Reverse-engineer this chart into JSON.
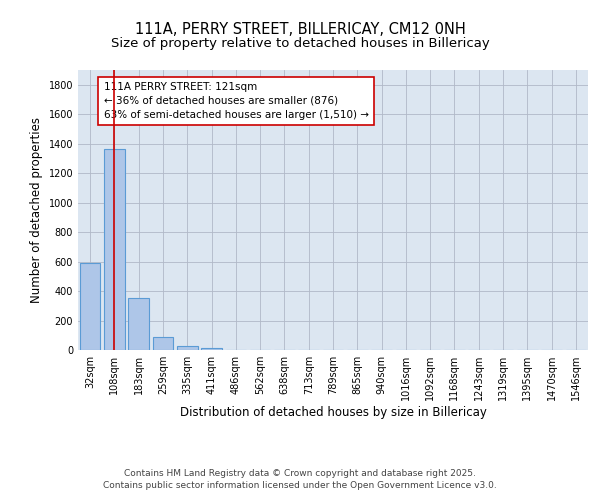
{
  "title1": "111A, PERRY STREET, BILLERICAY, CM12 0NH",
  "title2": "Size of property relative to detached houses in Billericay",
  "xlabel": "Distribution of detached houses by size in Billericay",
  "ylabel": "Number of detached properties",
  "bar_labels": [
    "32sqm",
    "108sqm",
    "183sqm",
    "259sqm",
    "335sqm",
    "411sqm",
    "486sqm",
    "562sqm",
    "638sqm",
    "713sqm",
    "789sqm",
    "865sqm",
    "940sqm",
    "1016sqm",
    "1092sqm",
    "1168sqm",
    "1243sqm",
    "1319sqm",
    "1395sqm",
    "1470sqm",
    "1546sqm"
  ],
  "bar_values": [
    590,
    1365,
    350,
    90,
    28,
    15,
    0,
    0,
    0,
    0,
    0,
    0,
    0,
    0,
    0,
    0,
    0,
    0,
    0,
    0,
    0
  ],
  "bar_color": "#aec6e8",
  "bar_edge_color": "#5b9bd5",
  "vline_x": 1,
  "vline_color": "#cc0000",
  "annotation_text": "111A PERRY STREET: 121sqm\n← 36% of detached houses are smaller (876)\n63% of semi-detached houses are larger (1,510) →",
  "annotation_box_color": "#ffffff",
  "annotation_box_edge": "#cc0000",
  "ylim": [
    0,
    1900
  ],
  "yticks": [
    0,
    200,
    400,
    600,
    800,
    1000,
    1200,
    1400,
    1600,
    1800
  ],
  "plot_bg_color": "#dce6f1",
  "footer1": "Contains HM Land Registry data © Crown copyright and database right 2025.",
  "footer2": "Contains public sector information licensed under the Open Government Licence v3.0.",
  "title_fontsize": 10.5,
  "subtitle_fontsize": 9.5,
  "tick_fontsize": 7,
  "xlabel_fontsize": 8.5,
  "ylabel_fontsize": 8.5,
  "annotation_fontsize": 7.5,
  "footer_fontsize": 6.5
}
